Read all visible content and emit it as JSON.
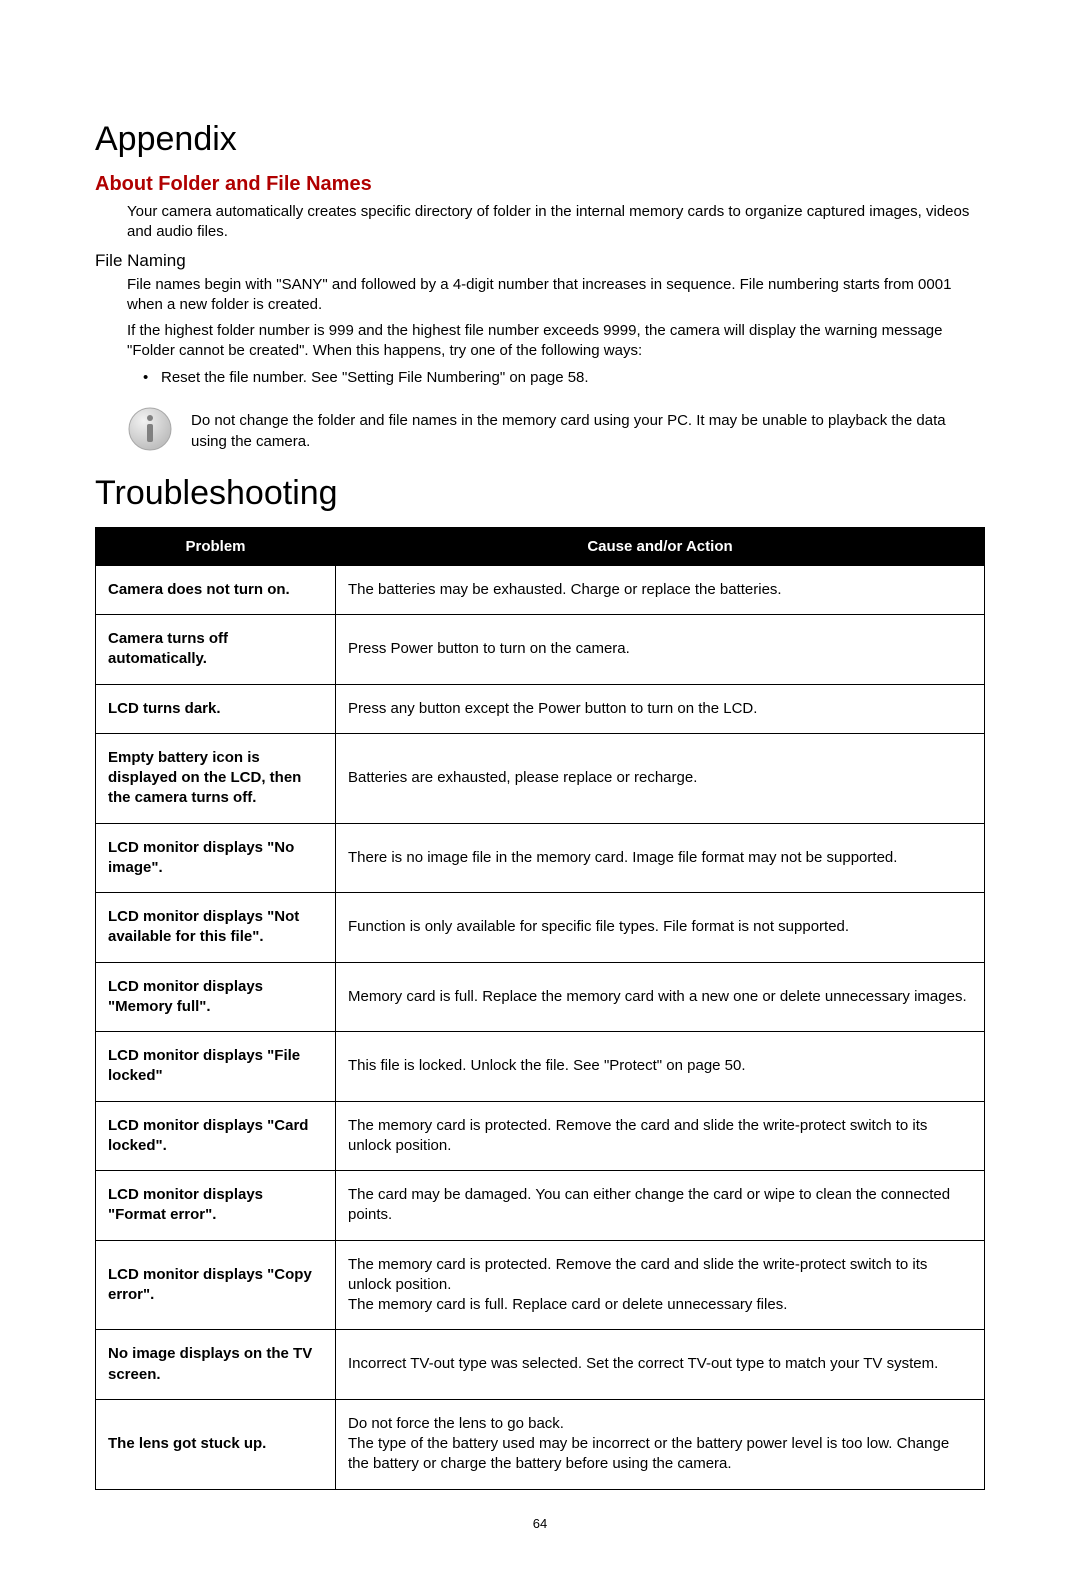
{
  "appendix": {
    "title": "Appendix",
    "section_title": "About Folder and File Names",
    "intro": "Your camera automatically creates specific directory of folder in the internal memory cards to organize captured images, videos and audio files.",
    "file_naming_heading": "File Naming",
    "file_naming_p1": "File names begin with \"SANY\" and followed by a 4-digit number that increases in sequence. File numbering starts from 0001 when a new folder is created.",
    "file_naming_p2": "If the highest folder number is 999 and the highest file number exceeds 9999, the camera will display the warning message \"Folder cannot be created\". When this happens, try one of the following ways:",
    "bullet": "Reset the file number. See \"Setting File Numbering\" on page 58.",
    "note": "Do not change the folder and file names in the memory card using your PC. It may be unable to playback the data using the camera."
  },
  "troubleshooting": {
    "title": "Troubleshooting",
    "headers": {
      "problem": "Problem",
      "action": "Cause and/or Action"
    },
    "rows": [
      {
        "problem": "Camera does not turn on.",
        "action": "The batteries may be exhausted. Charge or replace the batteries."
      },
      {
        "problem": "Camera turns off automatically.",
        "action": "Press Power button to turn on the camera."
      },
      {
        "problem": "LCD turns dark.",
        "action": "Press any button except the Power button to turn on the LCD."
      },
      {
        "problem": "Empty battery icon is displayed on the LCD, then the camera turns off.",
        "action": "Batteries are exhausted, please replace or recharge."
      },
      {
        "problem": "LCD monitor displays \"No image\".",
        "action": "There is no image file in the memory card. Image file format may not be supported."
      },
      {
        "problem": "LCD monitor displays \"Not available for this file\".",
        "action": "Function is only available for specific file types. File format is not supported."
      },
      {
        "problem": "LCD monitor displays \"Memory full\".",
        "action": "Memory card is full. Replace the memory card with a new one or delete unnecessary images."
      },
      {
        "problem": "LCD monitor displays \"File locked\"",
        "action": "This file is locked. Unlock the file. See \"Protect\" on page 50."
      },
      {
        "problem": "LCD monitor displays \"Card locked\".",
        "action": "The memory card is protected. Remove the card and slide the write-protect switch to its unlock position."
      },
      {
        "problem": "LCD monitor displays \"Format error\".",
        "action": "The card may be damaged. You can either change the card or wipe to clean the connected points."
      },
      {
        "problem": "LCD monitor displays \"Copy error\".",
        "action": "The memory card is protected. Remove the card and slide the write-protect switch to its unlock position.\nThe memory card is full. Replace card or delete unnecessary files."
      },
      {
        "problem": "No image displays on the TV screen.",
        "action": "Incorrect TV-out type was selected. Set the correct TV-out type to match your TV system."
      },
      {
        "problem": "The lens got stuck up.",
        "action": "Do not force the lens to go back.\nThe type of the battery used may be incorrect or the battery power level is too low. Change the battery or charge the battery before using the camera."
      }
    ]
  },
  "page_number": "64",
  "colors": {
    "heading_red": "#b00000",
    "table_header_bg": "#000000",
    "table_header_fg": "#ffffff",
    "border": "#000000",
    "note_icon_circle": "#d9d9d9",
    "note_icon_i": "#808080"
  }
}
